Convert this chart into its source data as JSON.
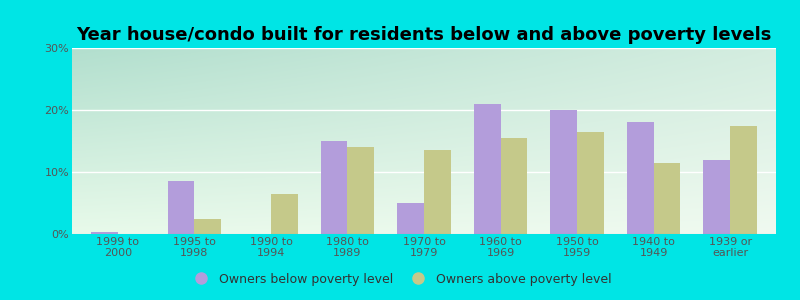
{
  "title": "Year house/condo built for residents below and above poverty levels",
  "categories": [
    "1999 to\n2000",
    "1995 to\n1998",
    "1990 to\n1994",
    "1980 to\n1989",
    "1970 to\n1979",
    "1960 to\n1969",
    "1950 to\n1959",
    "1940 to\n1949",
    "1939 or\nearlier"
  ],
  "below_poverty": [
    0.4,
    8.5,
    0.0,
    15.0,
    5.0,
    21.0,
    20.0,
    18.0,
    12.0
  ],
  "above_poverty": [
    0.0,
    2.5,
    6.5,
    14.0,
    13.5,
    15.5,
    16.5,
    11.5,
    17.5
  ],
  "below_color": "#b39ddb",
  "above_color": "#c5c98a",
  "ylim": [
    0,
    30
  ],
  "yticks": [
    0,
    10,
    20,
    30
  ],
  "ytick_labels": [
    "0%",
    "10%",
    "20%",
    "30%"
  ],
  "bg_topleft": "#b2dfce",
  "bg_bottomright": "#f0faf0",
  "outer_bg": "#00e5e5",
  "legend_below": "Owners below poverty level",
  "legend_above": "Owners above poverty level",
  "title_fontsize": 13,
  "tick_fontsize": 8,
  "legend_fontsize": 9
}
